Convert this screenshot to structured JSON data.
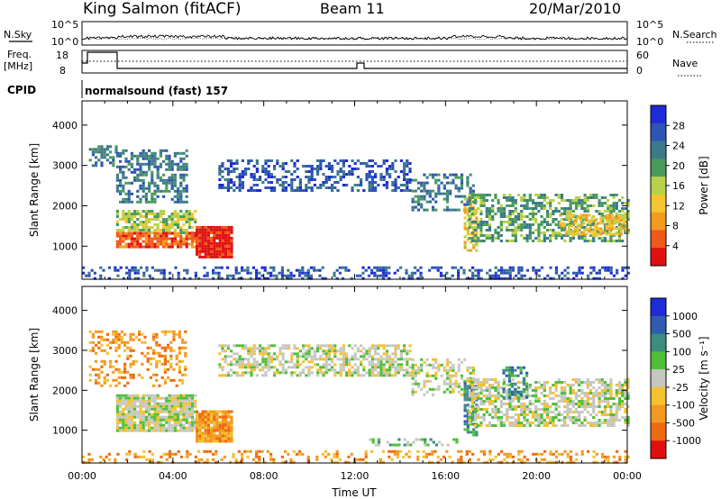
{
  "header": {
    "station": "King Salmon (fitACF)",
    "beam": "Beam 11",
    "date": "20/Mar/2010"
  },
  "summary": {
    "nsky_label": "N.Sky",
    "nsky_ticks": [
      "10^5",
      "10^0"
    ],
    "nsearch_label": "N.Search",
    "nsearch_ticks": [
      "10^5",
      "10^0"
    ],
    "freq_label": "Freq.",
    "freq_unit": "[MHz]",
    "freq_ticks": [
      "18",
      "8"
    ],
    "nave_label": "Nave",
    "nave_ticks": [
      "60",
      "0"
    ],
    "cpid_label": "CPID",
    "cpid_text": "normalsound (fast) 157"
  },
  "colors": {
    "power": [
      "#1f2bd6",
      "#2d55b4",
      "#3c7a8a",
      "#4a9a5c",
      "#b8d14a",
      "#f5c431",
      "#f39a1f",
      "#ee5a17",
      "#e01010"
    ],
    "velocity": [
      "#1f2bd6",
      "#2f5cb0",
      "#3c8c80",
      "#4fbf3a",
      "#c7c7c2",
      "#f4c12f",
      "#f39820",
      "#ee6a10",
      "#e01010"
    ],
    "background": "#ffffff"
  },
  "chart_data": [
    {
      "type": "heatmap",
      "name": "power",
      "ylabel": "Slant Range [km]",
      "colorbar_label": "Power [dB]",
      "colorbar_ticks": [
        "28",
        "24",
        "20",
        "16",
        "12",
        "8",
        "4"
      ],
      "xlim": [
        "00:00",
        "24:00"
      ],
      "ylim": [
        180,
        4600
      ],
      "y_ticks": [
        "4000",
        "3000",
        "2000",
        "1000"
      ],
      "regions": [
        {
          "t0": 0.3,
          "t1": 1.5,
          "r0": 3000,
          "r1": 3500,
          "level": 2,
          "density": 0.55
        },
        {
          "t0": 1.5,
          "t1": 4.6,
          "r0": 2100,
          "r1": 3400,
          "level": 2,
          "density": 0.5
        },
        {
          "t0": 1.5,
          "t1": 5.0,
          "r0": 1300,
          "r1": 1900,
          "level": 4,
          "density": 0.7
        },
        {
          "t0": 1.5,
          "t1": 5.0,
          "r0": 1000,
          "r1": 1350,
          "level": 7,
          "density": 0.85
        },
        {
          "t0": 5.0,
          "t1": 6.6,
          "r0": 700,
          "r1": 1500,
          "level": 8,
          "density": 0.95
        },
        {
          "t0": 6.0,
          "t1": 14.5,
          "r0": 2400,
          "r1": 3150,
          "level": 1,
          "density": 0.45
        },
        {
          "t0": 14.5,
          "t1": 17.2,
          "r0": 1900,
          "r1": 2800,
          "level": 2,
          "density": 0.45
        },
        {
          "t0": 16.8,
          "t1": 17.4,
          "r0": 900,
          "r1": 2200,
          "level": 5,
          "density": 0.6
        },
        {
          "t0": 17.0,
          "t1": 24.0,
          "r0": 1100,
          "r1": 2300,
          "level": 3,
          "density": 0.55
        },
        {
          "t0": 21.0,
          "t1": 24.0,
          "r0": 1300,
          "r1": 1800,
          "level": 5,
          "density": 0.6
        },
        {
          "t0": 0.0,
          "t1": 24.0,
          "r0": 200,
          "r1": 500,
          "level": 1,
          "density": 0.35
        }
      ]
    },
    {
      "type": "heatmap",
      "name": "velocity",
      "ylabel": "Slant Range [km]",
      "xlabel": "Time UT",
      "colorbar_label": "Velocity [m s⁻¹]",
      "colorbar_ticks": [
        "1000",
        "500",
        "100",
        "25",
        "-25",
        "-100",
        "-500",
        "-1000"
      ],
      "xlim": [
        "00:00",
        "24:00"
      ],
      "ylim": [
        180,
        4600
      ],
      "y_ticks": [
        "4000",
        "3000",
        "2000",
        "1000"
      ],
      "x_ticks": [
        "00:00",
        "04:00",
        "08:00",
        "12:00",
        "16:00",
        "20:00",
        "00:00"
      ],
      "regions": [
        {
          "t0": 0.3,
          "t1": 4.6,
          "r0": 2100,
          "r1": 3500,
          "level": 6,
          "density": 0.35
        },
        {
          "t0": 1.5,
          "t1": 5.0,
          "r0": 1000,
          "r1": 1900,
          "level": 4,
          "density": 0.9
        },
        {
          "t0": 5.0,
          "t1": 6.6,
          "r0": 700,
          "r1": 1500,
          "level": 6,
          "density": 0.95
        },
        {
          "t0": 6.0,
          "t1": 14.5,
          "r0": 2400,
          "r1": 3150,
          "level": 4,
          "density": 0.6
        },
        {
          "t0": 14.5,
          "t1": 17.2,
          "r0": 1900,
          "r1": 2800,
          "level": 4,
          "density": 0.45
        },
        {
          "t0": 16.8,
          "t1": 17.4,
          "r0": 900,
          "r1": 2200,
          "level": 2,
          "density": 0.6
        },
        {
          "t0": 17.0,
          "t1": 24.0,
          "r0": 1100,
          "r1": 2300,
          "level": 4,
          "density": 0.6
        },
        {
          "t0": 18.5,
          "t1": 19.6,
          "r0": 1800,
          "r1": 2600,
          "level": 2,
          "density": 0.5
        },
        {
          "t0": 12.5,
          "t1": 16.5,
          "r0": 600,
          "r1": 800,
          "level": 3,
          "density": 0.4
        },
        {
          "t0": 0.0,
          "t1": 24.0,
          "r0": 200,
          "r1": 500,
          "level": 6,
          "density": 0.3
        }
      ]
    }
  ]
}
